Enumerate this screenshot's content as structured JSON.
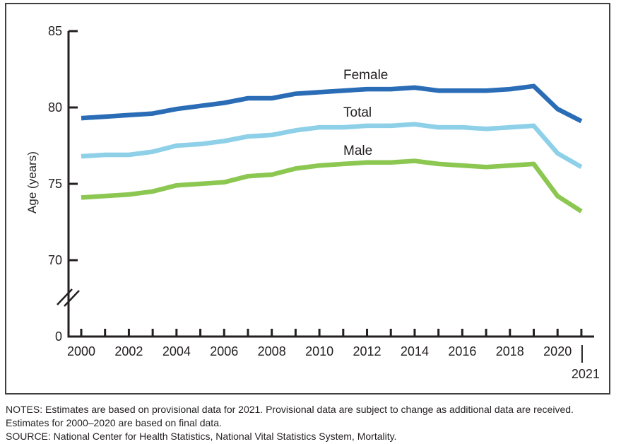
{
  "chart_data": {
    "type": "line",
    "title": "",
    "ylabel": "Age (years)",
    "xlabel": "",
    "axis_color": "#231f20",
    "grid": false,
    "legend_position": "inline-labels-above-lines",
    "axis_break_between": [
      0,
      70
    ],
    "ylim_display": [
      70,
      85
    ],
    "x_range": [
      2000,
      2021
    ],
    "x": [
      2000,
      2001,
      2002,
      2003,
      2004,
      2005,
      2006,
      2007,
      2008,
      2009,
      2010,
      2011,
      2012,
      2013,
      2014,
      2015,
      2016,
      2017,
      2018,
      2019,
      2020,
      2021
    ],
    "series": [
      {
        "name": "Female",
        "color": "#2a6cb6",
        "values": [
          79.3,
          79.4,
          79.5,
          79.6,
          79.9,
          80.1,
          80.3,
          80.6,
          80.6,
          80.9,
          81.0,
          81.1,
          81.2,
          81.2,
          81.3,
          81.1,
          81.1,
          81.1,
          81.2,
          81.4,
          79.9,
          79.1
        ]
      },
      {
        "name": "Total",
        "color": "#8dd0e8",
        "values": [
          76.8,
          76.9,
          76.9,
          77.1,
          77.5,
          77.6,
          77.8,
          78.1,
          78.2,
          78.5,
          78.7,
          78.7,
          78.8,
          78.8,
          78.9,
          78.7,
          78.7,
          78.6,
          78.7,
          78.8,
          77.0,
          76.1
        ]
      },
      {
        "name": "Male",
        "color": "#8bc751",
        "values": [
          74.1,
          74.2,
          74.3,
          74.5,
          74.9,
          75.0,
          75.1,
          75.5,
          75.6,
          76.0,
          76.2,
          76.3,
          76.4,
          76.4,
          76.5,
          76.3,
          76.2,
          76.1,
          76.2,
          76.3,
          74.2,
          73.2
        ]
      }
    ],
    "y_ticks": [
      85,
      80,
      75,
      70
    ],
    "y_tick_labels": [
      "85",
      "80",
      "75",
      "70"
    ],
    "origin_label": "0",
    "x_tick_labels": [
      "2000",
      "2002",
      "2004",
      "2006",
      "2008",
      "2010",
      "2012",
      "2014",
      "2016",
      "2018",
      "2020"
    ],
    "x_last_label": "2021"
  },
  "notes": {
    "line1": "NOTES: Estimates are based on provisional data for 2021. Provisional data are subject to change as additional data are received.",
    "line2": "Estimates for 2000–2020 are based on final data.",
    "line3": "SOURCE: National Center for Health Statistics, National Vital Statistics System, Mortality."
  }
}
